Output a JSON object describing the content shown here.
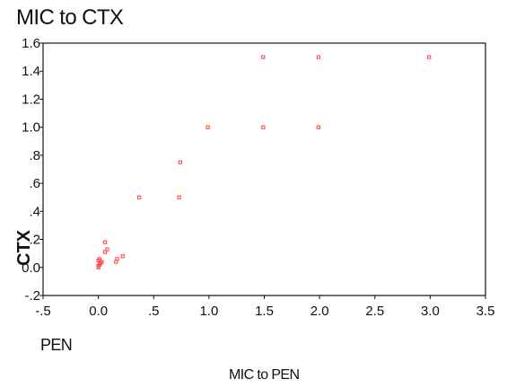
{
  "title": "MIC to CTX",
  "x_sub_label": "PEN",
  "x_caption": "MIC to PEN",
  "y_label": "CTX",
  "chart_data": {
    "type": "scatter",
    "title": "MIC to CTX",
    "xlabel": "PEN",
    "ylabel": "CTX",
    "caption": "MIC to PEN",
    "xlim": [
      -0.5,
      3.5
    ],
    "ylim": [
      -0.2,
      1.6
    ],
    "x_ticks": [
      -0.5,
      0.0,
      0.5,
      1.0,
      1.5,
      2.0,
      2.5,
      3.0,
      3.5
    ],
    "x_tick_labels": [
      "-.5",
      "0.0",
      ".5",
      "1.0",
      "1.5",
      "2.0",
      "2.5",
      "3.0",
      "3.5"
    ],
    "y_ticks": [
      -0.2,
      0.0,
      0.2,
      0.4,
      0.6,
      0.8,
      1.0,
      1.2,
      1.4,
      1.6
    ],
    "y_tick_labels": [
      "-.2",
      "0.0",
      ".2",
      ".4",
      ".6",
      ".8",
      "1.0",
      "1.2",
      "1.4",
      "1.6"
    ],
    "grid": false,
    "marker_color": "#ff4040",
    "points": [
      {
        "x": 0.0,
        "y": 0.0
      },
      {
        "x": 0.0,
        "y": 0.01
      },
      {
        "x": 0.01,
        "y": 0.02
      },
      {
        "x": 0.0,
        "y": 0.05
      },
      {
        "x": 0.02,
        "y": 0.03
      },
      {
        "x": 0.01,
        "y": 0.06
      },
      {
        "x": 0.03,
        "y": 0.04
      },
      {
        "x": 0.06,
        "y": 0.18
      },
      {
        "x": 0.06,
        "y": 0.11
      },
      {
        "x": 0.08,
        "y": 0.13
      },
      {
        "x": 0.16,
        "y": 0.04
      },
      {
        "x": 0.17,
        "y": 0.06
      },
      {
        "x": 0.22,
        "y": 0.08
      },
      {
        "x": 0.37,
        "y": 0.5
      },
      {
        "x": 0.73,
        "y": 0.5
      },
      {
        "x": 0.74,
        "y": 0.75
      },
      {
        "x": 0.99,
        "y": 1.0
      },
      {
        "x": 1.49,
        "y": 1.0
      },
      {
        "x": 1.49,
        "y": 1.5
      },
      {
        "x": 1.99,
        "y": 1.0
      },
      {
        "x": 1.99,
        "y": 1.5
      },
      {
        "x": 2.99,
        "y": 1.5
      }
    ]
  }
}
